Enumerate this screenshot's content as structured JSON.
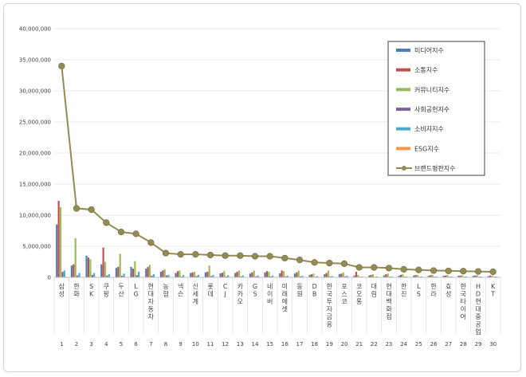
{
  "chart_data": {
    "type": "bar",
    "title": "",
    "xlabel": "",
    "ylabel": "",
    "ylim": [
      0,
      40000000
    ],
    "yticks": [
      "0",
      "5,000,000",
      "10,000,000",
      "15,000,000",
      "20,000,000",
      "25,000,000",
      "30,000,000",
      "35,000,000",
      "40,000,000"
    ],
    "grid": true,
    "legend_position": "right",
    "categories": [
      "삼성",
      "한화",
      "SK",
      "쿠팡",
      "두산",
      "LG",
      "현대자동차",
      "농협",
      "넥슨",
      "신세계",
      "롯데",
      "CJ",
      "카카오",
      "GS",
      "네이버",
      "미래에셋",
      "동원",
      "DB",
      "한국투자금융",
      "포스코",
      "코오롱",
      "대림",
      "현대백화점",
      "한진",
      "LS",
      "한라",
      "효성",
      "한국타이어",
      "HD현대중공업",
      "KT"
    ],
    "ranks": [
      "1",
      "2",
      "3",
      "4",
      "5",
      "6",
      "7",
      "8",
      "9",
      "10",
      "11",
      "12",
      "13",
      "14",
      "15",
      "16",
      "17",
      "18",
      "19",
      "20",
      "21",
      "22",
      "23",
      "24",
      "25",
      "26",
      "27",
      "28",
      "29",
      "30"
    ],
    "series": [
      {
        "name": "미디어지수",
        "color": "#4a7ebb",
        "values": [
          8500000,
          1900000,
          3500000,
          2100000,
          1500000,
          1700000,
          1400000,
          900000,
          700000,
          700000,
          800000,
          650000,
          700000,
          600000,
          800000,
          650000,
          600000,
          400000,
          500000,
          500000,
          300000,
          300000,
          300000,
          250000,
          300000,
          250000,
          250000,
          250000,
          250000,
          200000
        ]
      },
      {
        "name": "소통지수",
        "color": "#c0504d",
        "values": [
          12300000,
          2100000,
          3200000,
          4800000,
          1700000,
          1400000,
          1700000,
          1100000,
          1000000,
          800000,
          900000,
          750000,
          900000,
          800000,
          1000000,
          1100000,
          800000,
          500000,
          700000,
          600000,
          900000,
          400000,
          500000,
          400000,
          350000,
          350000,
          300000,
          300000,
          300000,
          300000
        ]
      },
      {
        "name": "커뮤니티지수",
        "color": "#9bbb59",
        "values": [
          11300000,
          6300000,
          2900000,
          2500000,
          3800000,
          2600000,
          2000000,
          1300000,
          1100000,
          900000,
          1900000,
          1000000,
          1100000,
          1100000,
          900000,
          1000000,
          1100000,
          600000,
          1100000,
          800000,
          400000,
          500000,
          600000,
          500000,
          400000,
          400000,
          400000,
          350000,
          350000,
          300000
        ]
      },
      {
        "name": "사회공헌지수",
        "color": "#8064a2",
        "values": [
          900000,
          300000,
          400000,
          300000,
          250000,
          350000,
          250000,
          300000,
          150000,
          200000,
          200000,
          150000,
          150000,
          150000,
          150000,
          150000,
          150000,
          100000,
          150000,
          150000,
          100000,
          100000,
          100000,
          100000,
          100000,
          100000,
          100000,
          100000,
          100000,
          100000
        ]
      },
      {
        "name": "소비자지수",
        "color": "#4bacc6",
        "values": [
          1100000,
          700000,
          700000,
          500000,
          600000,
          900000,
          500000,
          400000,
          400000,
          400000,
          400000,
          350000,
          300000,
          300000,
          300000,
          250000,
          250000,
          200000,
          200000,
          250000,
          150000,
          150000,
          150000,
          150000,
          150000,
          150000,
          150000,
          150000,
          150000,
          150000
        ]
      },
      {
        "name": "ESG지수",
        "color": "#f79646",
        "values": [
          100000,
          80000,
          80000,
          60000,
          60000,
          60000,
          60000,
          50000,
          40000,
          40000,
          40000,
          40000,
          40000,
          40000,
          40000,
          40000,
          40000,
          30000,
          30000,
          30000,
          30000,
          30000,
          30000,
          30000,
          30000,
          30000,
          30000,
          30000,
          30000,
          30000
        ]
      }
    ],
    "line_series": {
      "name": "브랜드평판지수",
      "color": "#948a54",
      "values": [
        34000000,
        11100000,
        10900000,
        8800000,
        7300000,
        7000000,
        5600000,
        3900000,
        3700000,
        3700000,
        3600000,
        3500000,
        3500000,
        3400000,
        3400000,
        3100000,
        2800000,
        2400000,
        2300000,
        2200000,
        1600000,
        1600000,
        1500000,
        1300000,
        1200000,
        1100000,
        1050000,
        1000000,
        950000,
        900000
      ]
    }
  }
}
